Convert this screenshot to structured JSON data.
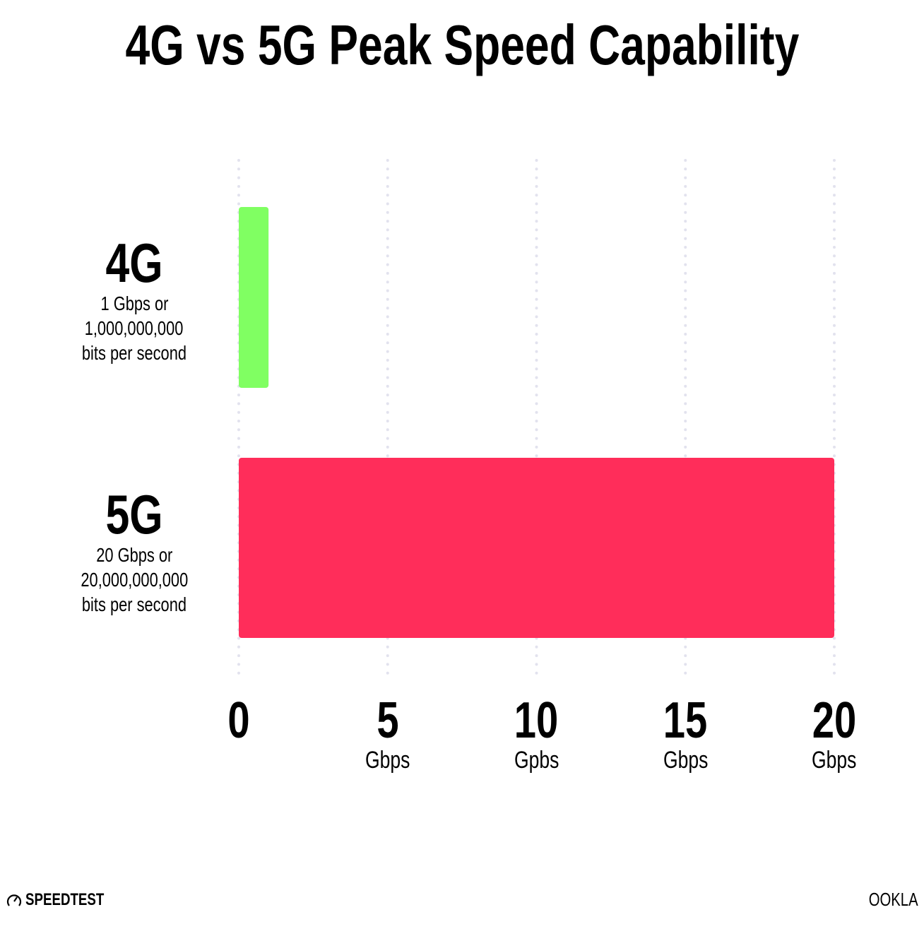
{
  "chart_data": {
    "type": "bar",
    "orientation": "horizontal",
    "title": "4G vs 5G Peak Speed Capability",
    "categories": [
      "4G",
      "5G"
    ],
    "values": [
      1,
      20
    ],
    "category_descriptions": [
      [
        "1 Gbps or",
        "1,000,000,000",
        "bits per second"
      ],
      [
        "20 Gbps or",
        "20,000,000,000",
        "bits per second"
      ]
    ],
    "xlim": [
      0,
      20
    ],
    "xticks": [
      {
        "value": 0,
        "label": "0",
        "unit": ""
      },
      {
        "value": 5,
        "label": "5",
        "unit": "Gbps"
      },
      {
        "value": 10,
        "label": "10",
        "unit": "Gpbs"
      },
      {
        "value": 15,
        "label": "15",
        "unit": "Gbps"
      },
      {
        "value": 20,
        "label": "20",
        "unit": "Gbps"
      }
    ],
    "grid": "vertical dotted",
    "colors": [
      "#80ff62",
      "#ff2d5a"
    ],
    "grid_color": "#e2e2ee"
  },
  "branding": {
    "left": "SPEEDTEST",
    "right": "OOKLA"
  }
}
